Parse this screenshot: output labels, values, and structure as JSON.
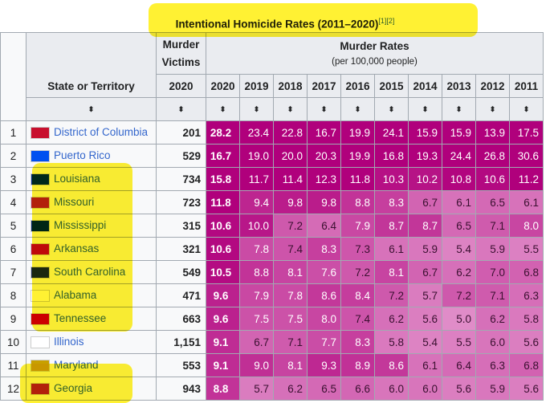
{
  "caption": {
    "title": "Intentional Homicide Rates (2011–2020)",
    "refs": "[1][2]"
  },
  "headers": {
    "state": "State or Territory",
    "victims_line1": "Murder",
    "victims_line2": "Victims",
    "victims_year": "2020",
    "rates": "Murder Rates",
    "rates_sub": "(per 100,000 people)",
    "years": [
      "2020",
      "2019",
      "2018",
      "2017",
      "2016",
      "2015",
      "2014",
      "2013",
      "2012",
      "2011"
    ],
    "sort_icon": "⬍"
  },
  "rows": [
    {
      "rank": "1",
      "state": "District of Columbia",
      "flag": "#c8102e",
      "victims": "201",
      "rates": [
        "28.2",
        "23.4",
        "22.8",
        "16.7",
        "19.9",
        "24.1",
        "15.9",
        "15.9",
        "13.9",
        "17.5"
      ]
    },
    {
      "rank": "2",
      "state": "Puerto Rico",
      "flag": "#0050f0",
      "victims": "529",
      "rates": [
        "16.7",
        "19.0",
        "20.0",
        "20.3",
        "19.9",
        "16.8",
        "19.3",
        "24.4",
        "26.8",
        "30.6"
      ]
    },
    {
      "rank": "3",
      "state": "Louisiana",
      "flag": "#002a86",
      "victims": "734",
      "rates": [
        "15.8",
        "11.7",
        "11.4",
        "12.3",
        "11.8",
        "10.3",
        "10.2",
        "10.8",
        "10.6",
        "11.2"
      ]
    },
    {
      "rank": "4",
      "state": "Missouri",
      "flag": "#b22234",
      "victims": "723",
      "rates": [
        "11.8",
        "9.4",
        "9.8",
        "9.8",
        "8.8",
        "8.3",
        "6.7",
        "6.1",
        "6.5",
        "6.1"
      ]
    },
    {
      "rank": "5",
      "state": "Mississippi",
      "flag": "#002868",
      "victims": "315",
      "rates": [
        "10.6",
        "10.0",
        "7.2",
        "6.4",
        "7.9",
        "8.7",
        "8.7",
        "6.5",
        "7.1",
        "8.0"
      ]
    },
    {
      "rank": "6",
      "state": "Arkansas",
      "flag": "#be0b31",
      "victims": "321",
      "rates": [
        "10.6",
        "7.8",
        "7.4",
        "8.3",
        "7.3",
        "6.1",
        "5.9",
        "5.4",
        "5.9",
        "5.5"
      ]
    },
    {
      "rank": "7",
      "state": "South Carolina",
      "flag": "#1b2a4a",
      "victims": "549",
      "rates": [
        "10.5",
        "8.8",
        "8.1",
        "7.6",
        "7.2",
        "8.1",
        "6.7",
        "6.2",
        "7.0",
        "6.8"
      ]
    },
    {
      "rank": "8",
      "state": "Alabama",
      "flag": "#ffffff",
      "victims": "471",
      "rates": [
        "9.6",
        "7.9",
        "7.8",
        "8.6",
        "8.4",
        "7.2",
        "5.7",
        "7.2",
        "7.1",
        "6.3"
      ]
    },
    {
      "rank": "9",
      "state": "Tennessee",
      "flag": "#cc0000",
      "victims": "663",
      "rates": [
        "9.6",
        "7.5",
        "7.5",
        "8.0",
        "7.4",
        "6.2",
        "5.6",
        "5.0",
        "6.2",
        "5.8"
      ]
    },
    {
      "rank": "10",
      "state": "Illinois",
      "flag": "#ffffff",
      "victims": "1,151",
      "rates": [
        "9.1",
        "6.7",
        "7.1",
        "7.7",
        "8.3",
        "5.8",
        "5.4",
        "5.5",
        "6.0",
        "5.6"
      ]
    },
    {
      "rank": "11",
      "state": "Maryland",
      "flag": "#c8a000",
      "victims": "553",
      "rates": [
        "9.1",
        "9.0",
        "8.1",
        "9.3",
        "8.9",
        "8.6",
        "6.1",
        "6.4",
        "6.3",
        "6.8"
      ]
    },
    {
      "rank": "12",
      "state": "Georgia",
      "flag": "#b22234",
      "victims": "943",
      "rates": [
        "8.8",
        "5.7",
        "6.2",
        "6.5",
        "6.6",
        "6.0",
        "6.0",
        "5.6",
        "5.9",
        "5.6"
      ]
    }
  ]
}
